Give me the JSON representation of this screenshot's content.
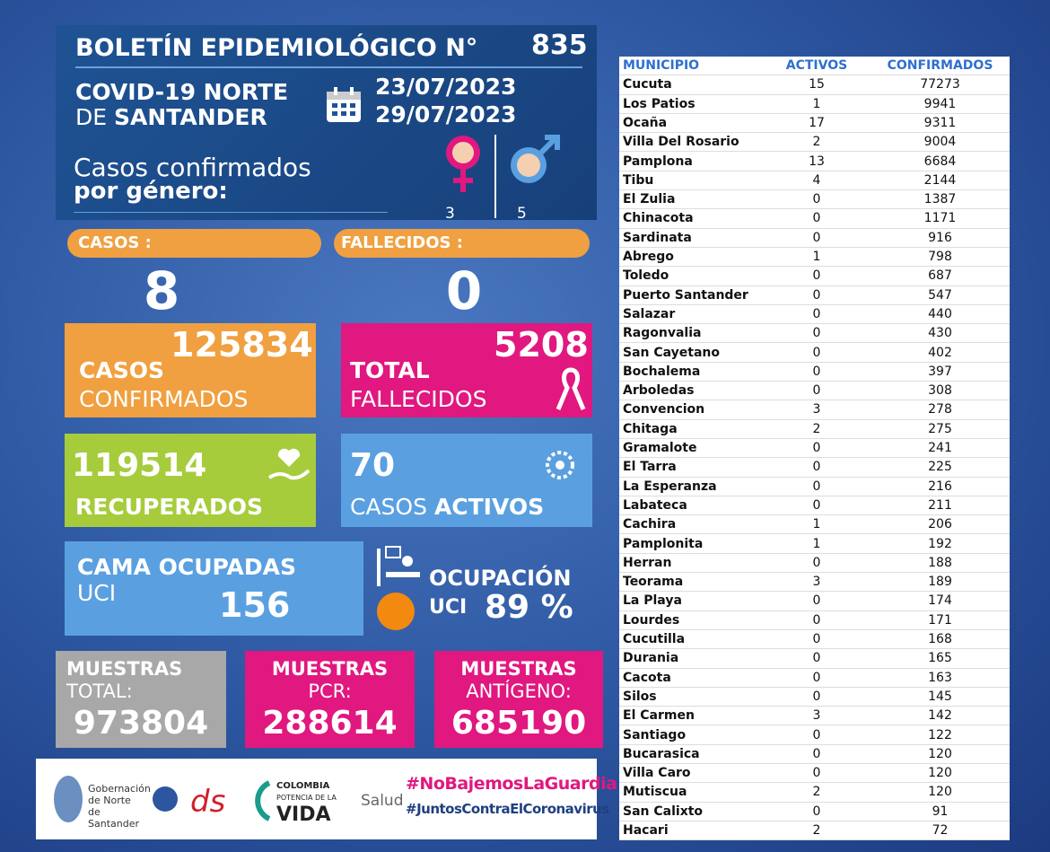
{
  "header": {
    "title": "BOLETÍN EPIDEMIOLÓGICO N°",
    "number": "835",
    "region_line1": "COVID-19 NORTE",
    "region_line2_a": "DE",
    "region_line2_b": "SANTANDER",
    "date_from": "23/07/2023",
    "date_to": "29/07/2023",
    "gender_line1": "Casos confirmados",
    "gender_line2": "por género:",
    "female": 3,
    "male": 5
  },
  "daily": {
    "cases_label": "CASOS :",
    "cases": 8,
    "deaths_label": "FALLECIDOS :",
    "deaths": 0
  },
  "boxes": {
    "confirmed": {
      "value": 125834,
      "line1": "CASOS",
      "line2": "CONFIRMADOS"
    },
    "deaths": {
      "value": 5208,
      "line1": "TOTAL",
      "line2": "FALLECIDOS"
    },
    "recovered": {
      "value": 119514,
      "line1": "RECUPERADOS"
    },
    "active": {
      "value": 70,
      "line1": "CASOS",
      "line2": "ACTIVOS"
    },
    "icu_beds": {
      "line1": "CAMA OCUPADAS",
      "line2": "UCI",
      "value": 156
    },
    "icu_occupancy": {
      "line1": "OCUPACIÓN",
      "line2": "UCI",
      "value": "89 %"
    }
  },
  "samples": [
    {
      "line1": "MUESTRAS",
      "line2": "TOTAL:",
      "value": 973804
    },
    {
      "line1": "MUESTRAS",
      "line2": "PCR:",
      "value": 288614
    },
    {
      "line1": "MUESTRAS",
      "line2": "ANTÍGENO:",
      "value": 685190
    }
  ],
  "footer": {
    "gov": "Gobernación de Norte de Santander",
    "colombia": "COLOMBIA",
    "potencia": "POTENCIA DE LA",
    "vida": "VIDA",
    "salud": "Salud",
    "hashtag1": "#NoBajemosLaGuardia",
    "hashtag2": "#JuntosContraElCoronavirus"
  },
  "table": {
    "headers": [
      "MUNICIPIO",
      "ACTIVOS",
      "CONFIRMADOS"
    ],
    "rows": [
      [
        "Cucuta",
        15,
        77273
      ],
      [
        "Los Patios",
        1,
        9941
      ],
      [
        "Ocaña",
        17,
        9311
      ],
      [
        "Villa Del Rosario",
        2,
        9004
      ],
      [
        "Pamplona",
        13,
        6684
      ],
      [
        "Tibu",
        4,
        2144
      ],
      [
        "El Zulia",
        0,
        1387
      ],
      [
        "Chinacota",
        0,
        1171
      ],
      [
        "Sardinata",
        0,
        916
      ],
      [
        "Abrego",
        1,
        798
      ],
      [
        "Toledo",
        0,
        687
      ],
      [
        "Puerto Santander",
        0,
        547
      ],
      [
        "Salazar",
        0,
        440
      ],
      [
        "Ragonvalia",
        0,
        430
      ],
      [
        "San Cayetano",
        0,
        402
      ],
      [
        "Bochalema",
        0,
        397
      ],
      [
        "Arboledas",
        0,
        308
      ],
      [
        "Convencion",
        3,
        278
      ],
      [
        "Chitaga",
        2,
        275
      ],
      [
        "Gramalote",
        0,
        241
      ],
      [
        "El Tarra",
        0,
        225
      ],
      [
        "La Esperanza",
        0,
        216
      ],
      [
        "Labateca",
        0,
        211
      ],
      [
        "Cachira",
        1,
        206
      ],
      [
        "Pamplonita",
        1,
        192
      ],
      [
        "Herran",
        0,
        188
      ],
      [
        "Teorama",
        3,
        189
      ],
      [
        "La Playa",
        0,
        174
      ],
      [
        "Lourdes",
        0,
        171
      ],
      [
        "Cucutilla",
        0,
        168
      ],
      [
        "Durania",
        0,
        165
      ],
      [
        "Cacota",
        0,
        163
      ],
      [
        "Silos",
        0,
        145
      ],
      [
        "El Carmen",
        3,
        142
      ],
      [
        "Santiago",
        0,
        122
      ],
      [
        "Bucarasica",
        0,
        120
      ],
      [
        "Villa Caro",
        0,
        120
      ],
      [
        "Mutiscua",
        2,
        120
      ],
      [
        "San Calixto",
        0,
        91
      ],
      [
        "Hacari",
        2,
        72
      ]
    ]
  }
}
